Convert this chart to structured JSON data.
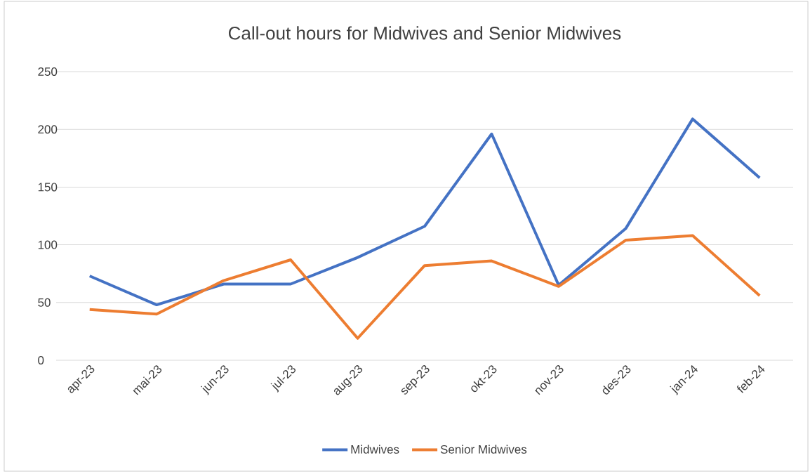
{
  "chart_data": {
    "type": "line",
    "title": "Call-out hours for Midwives and Senior Midwives",
    "categories": [
      "apr-23",
      "mai-23",
      "jun-23",
      "jul-23",
      "aug-23",
      "sep-23",
      "okt-23",
      "nov-23",
      "des-23",
      "jan-24",
      "feb-24"
    ],
    "series": [
      {
        "name": "Midwives",
        "color": "#4472c4",
        "values": [
          73,
          48,
          66,
          66,
          89,
          116,
          196,
          65,
          114,
          209,
          158
        ]
      },
      {
        "name": "Senior Midwives",
        "color": "#ed7d31",
        "values": [
          44,
          40,
          69,
          87,
          19,
          82,
          86,
          64,
          104,
          108,
          56
        ]
      }
    ],
    "ylim": [
      0,
      250
    ],
    "yticks": [
      0,
      50,
      100,
      150,
      200,
      250
    ],
    "grid": "y",
    "legend": "bottom",
    "marker": "none",
    "line_style": "solid"
  }
}
